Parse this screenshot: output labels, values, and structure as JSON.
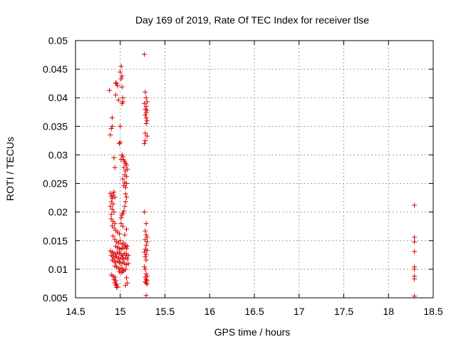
{
  "chart_data": {
    "type": "scatter",
    "title": "Day 169 of 2019, Rate Of TEC Index for receiver tlse",
    "xlabel": "GPS time / hours",
    "ylabel": "ROTI / TECUs",
    "xlim": [
      14.5,
      18.5
    ],
    "ylim": [
      0.005,
      0.05
    ],
    "grid": true,
    "marker": "+",
    "color": "#dd0000",
    "xticks": [
      {
        "value": 14.5,
        "label": "14.5"
      },
      {
        "value": 15,
        "label": "15"
      },
      {
        "value": 15.5,
        "label": "15.5"
      },
      {
        "value": 16,
        "label": "16"
      },
      {
        "value": 16.5,
        "label": "16.5"
      },
      {
        "value": 17,
        "label": "17"
      },
      {
        "value": 17.5,
        "label": "17.5"
      },
      {
        "value": 18,
        "label": "18"
      },
      {
        "value": 18.5,
        "label": "18.5"
      }
    ],
    "yticks": [
      {
        "value": 0.005,
        "label": "0.005"
      },
      {
        "value": 0.01,
        "label": "0.01"
      },
      {
        "value": 0.015,
        "label": "0.015"
      },
      {
        "value": 0.02,
        "label": "0.02"
      },
      {
        "value": 0.025,
        "label": "0.025"
      },
      {
        "value": 0.03,
        "label": "0.03"
      },
      {
        "value": 0.035,
        "label": "0.035"
      },
      {
        "value": 0.04,
        "label": "0.04"
      },
      {
        "value": 0.045,
        "label": "0.045"
      },
      {
        "value": 0.05,
        "label": "0.05"
      }
    ],
    "series": [
      {
        "name": "ROTI",
        "points": [
          [
            14.88,
            0.0413
          ],
          [
            14.89,
            0.0335
          ],
          [
            14.9,
            0.0346
          ],
          [
            14.91,
            0.0365
          ],
          [
            14.91,
            0.035
          ],
          [
            14.93,
            0.0295
          ],
          [
            14.94,
            0.0278
          ],
          [
            14.95,
            0.0405
          ],
          [
            14.95,
            0.0426
          ],
          [
            14.96,
            0.0425
          ],
          [
            14.97,
            0.0421
          ],
          [
            14.98,
            0.0396
          ],
          [
            14.99,
            0.032
          ],
          [
            15.0,
            0.0322
          ],
          [
            15.0,
            0.0445
          ],
          [
            15.01,
            0.0455
          ],
          [
            15.01,
            0.0433
          ],
          [
            15.02,
            0.0438
          ],
          [
            15.02,
            0.0419
          ],
          [
            15.02,
            0.039
          ],
          [
            15.03,
            0.04
          ],
          [
            15.03,
            0.0393
          ],
          [
            15.0,
            0.035
          ],
          [
            15.01,
            0.0292
          ],
          [
            15.02,
            0.03
          ],
          [
            15.03,
            0.0297
          ],
          [
            15.04,
            0.0291
          ],
          [
            15.05,
            0.0288
          ],
          [
            15.06,
            0.0285
          ],
          [
            15.07,
            0.0282
          ],
          [
            15.04,
            0.0278
          ],
          [
            15.06,
            0.0272
          ],
          [
            15.08,
            0.0275
          ],
          [
            15.05,
            0.0265
          ],
          [
            15.07,
            0.0262
          ],
          [
            15.03,
            0.0258
          ],
          [
            15.05,
            0.0252
          ],
          [
            15.07,
            0.025
          ],
          [
            15.04,
            0.0246
          ],
          [
            15.06,
            0.0243
          ],
          [
            14.89,
            0.0233
          ],
          [
            14.9,
            0.0228
          ],
          [
            14.91,
            0.0224
          ],
          [
            14.92,
            0.023
          ],
          [
            14.93,
            0.0235
          ],
          [
            14.94,
            0.0226
          ],
          [
            14.9,
            0.0218
          ],
          [
            14.92,
            0.0214
          ],
          [
            14.89,
            0.021
          ],
          [
            14.91,
            0.0205
          ],
          [
            14.93,
            0.02
          ],
          [
            14.9,
            0.0196
          ],
          [
            15.06,
            0.0232
          ],
          [
            15.07,
            0.0226
          ],
          [
            15.06,
            0.0218
          ],
          [
            15.05,
            0.021
          ],
          [
            15.04,
            0.0202
          ],
          [
            15.03,
            0.0198
          ],
          [
            15.02,
            0.0195
          ],
          [
            15.01,
            0.019
          ],
          [
            14.9,
            0.0188
          ],
          [
            14.92,
            0.0184
          ],
          [
            14.94,
            0.018
          ],
          [
            14.91,
            0.0176
          ],
          [
            14.93,
            0.0172
          ],
          [
            14.95,
            0.0168
          ],
          [
            14.97,
            0.0165
          ],
          [
            14.99,
            0.0162
          ],
          [
            15.01,
            0.018
          ],
          [
            15.03,
            0.0175
          ],
          [
            15.05,
            0.016
          ],
          [
            15.07,
            0.017
          ],
          [
            14.92,
            0.0158
          ],
          [
            14.94,
            0.0152
          ],
          [
            14.96,
            0.0148
          ],
          [
            14.98,
            0.0146
          ],
          [
            15.0,
            0.015
          ],
          [
            15.02,
            0.0144
          ],
          [
            15.04,
            0.0146
          ],
          [
            15.06,
            0.0142
          ],
          [
            15.08,
            0.014
          ],
          [
            14.95,
            0.014
          ],
          [
            14.97,
            0.0138
          ],
          [
            14.99,
            0.0136
          ],
          [
            15.01,
            0.0135
          ],
          [
            15.03,
            0.0137
          ],
          [
            15.05,
            0.0139
          ],
          [
            15.07,
            0.0136
          ],
          [
            14.89,
            0.0132
          ],
          [
            14.91,
            0.013
          ],
          [
            14.93,
            0.0128
          ],
          [
            14.95,
            0.0126
          ],
          [
            14.97,
            0.013
          ],
          [
            14.99,
            0.0128
          ],
          [
            15.01,
            0.0126
          ],
          [
            15.03,
            0.0124
          ],
          [
            15.05,
            0.0128
          ],
          [
            15.07,
            0.0126
          ],
          [
            15.09,
            0.0124
          ],
          [
            14.9,
            0.0124
          ],
          [
            14.92,
            0.0122
          ],
          [
            14.94,
            0.012
          ],
          [
            14.96,
            0.0122
          ],
          [
            14.98,
            0.012
          ],
          [
            15.0,
            0.0118
          ],
          [
            15.02,
            0.012
          ],
          [
            15.04,
            0.0118
          ],
          [
            15.06,
            0.012
          ],
          [
            15.08,
            0.0118
          ],
          [
            14.91,
            0.0116
          ],
          [
            14.93,
            0.0114
          ],
          [
            14.95,
            0.0112
          ],
          [
            14.97,
            0.0114
          ],
          [
            14.99,
            0.0112
          ],
          [
            15.01,
            0.011
          ],
          [
            15.03,
            0.0112
          ],
          [
            15.05,
            0.011
          ],
          [
            15.07,
            0.0108
          ],
          [
            15.09,
            0.011
          ],
          [
            14.94,
            0.0106
          ],
          [
            14.96,
            0.0104
          ],
          [
            14.98,
            0.0102
          ],
          [
            15.0,
            0.01
          ],
          [
            15.02,
            0.0102
          ],
          [
            15.04,
            0.0098
          ],
          [
            15.06,
            0.01
          ],
          [
            14.99,
            0.0096
          ],
          [
            15.01,
            0.0094
          ],
          [
            15.03,
            0.0096
          ],
          [
            14.9,
            0.009
          ],
          [
            14.92,
            0.0088
          ],
          [
            14.94,
            0.0086
          ],
          [
            14.93,
            0.0082
          ],
          [
            14.95,
            0.008
          ],
          [
            14.94,
            0.0076
          ],
          [
            14.96,
            0.0074
          ],
          [
            14.95,
            0.0072
          ],
          [
            14.97,
            0.007
          ],
          [
            14.96,
            0.0068
          ],
          [
            15.07,
            0.0085
          ],
          [
            15.08,
            0.0076
          ],
          [
            15.06,
            0.0072
          ],
          [
            15.27,
            0.0476
          ],
          [
            15.28,
            0.041
          ],
          [
            15.29,
            0.04
          ],
          [
            15.3,
            0.0393
          ],
          [
            15.27,
            0.039
          ],
          [
            15.29,
            0.0385
          ],
          [
            15.28,
            0.038
          ],
          [
            15.3,
            0.0378
          ],
          [
            15.29,
            0.0374
          ],
          [
            15.28,
            0.037
          ],
          [
            15.29,
            0.0365
          ],
          [
            15.3,
            0.036
          ],
          [
            15.29,
            0.0355
          ],
          [
            15.28,
            0.0338
          ],
          [
            15.3,
            0.0333
          ],
          [
            15.27,
            0.032
          ],
          [
            15.28,
            0.0325
          ],
          [
            15.27,
            0.02
          ],
          [
            15.29,
            0.018
          ],
          [
            15.28,
            0.0167
          ],
          [
            15.29,
            0.016
          ],
          [
            15.3,
            0.0156
          ],
          [
            15.28,
            0.0152
          ],
          [
            15.3,
            0.0148
          ],
          [
            15.29,
            0.0142
          ],
          [
            15.28,
            0.0135
          ],
          [
            15.3,
            0.0133
          ],
          [
            15.27,
            0.013
          ],
          [
            15.29,
            0.0126
          ],
          [
            15.28,
            0.0122
          ],
          [
            15.29,
            0.0116
          ],
          [
            15.27,
            0.0104
          ],
          [
            15.28,
            0.01
          ],
          [
            15.29,
            0.0092
          ],
          [
            15.3,
            0.0088
          ],
          [
            15.28,
            0.0086
          ],
          [
            15.29,
            0.0082
          ],
          [
            15.3,
            0.008
          ],
          [
            15.28,
            0.0078
          ],
          [
            15.29,
            0.0076
          ],
          [
            15.3,
            0.0074
          ],
          [
            15.29,
            0.0054
          ],
          [
            18.29,
            0.0212
          ],
          [
            18.29,
            0.0156
          ],
          [
            18.29,
            0.0148
          ],
          [
            18.29,
            0.0131
          ],
          [
            18.29,
            0.0104
          ],
          [
            18.29,
            0.01
          ],
          [
            18.29,
            0.0088
          ],
          [
            18.29,
            0.0083
          ],
          [
            18.29,
            0.0053
          ]
        ]
      }
    ]
  }
}
